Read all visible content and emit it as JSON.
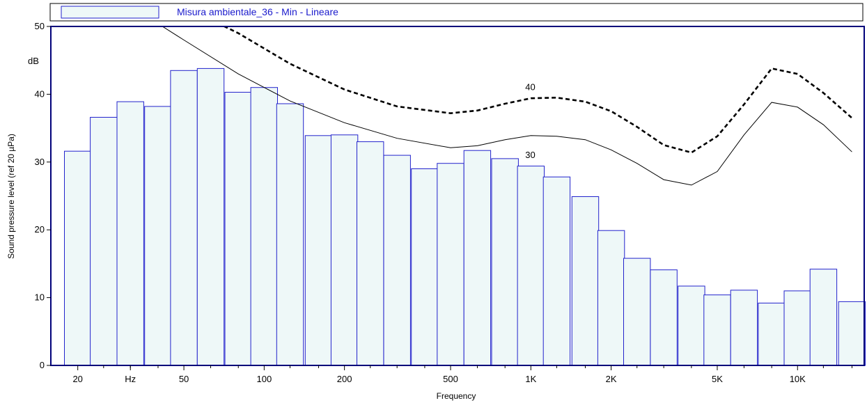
{
  "colors": {
    "bar_fill": "#eef8f8",
    "bar_stroke": "#2222cc",
    "frame": "#00007a",
    "legend_text": "#1a1acc",
    "contour": "#000000"
  },
  "chart_data": {
    "type": "bar",
    "legend": "Misura ambientale_36 - Min - Lineare",
    "xlabel": "Frequency",
    "ylabel": "Sound pressure level (ref 20 µPa)",
    "y_unit_label": "dB",
    "ylim": [
      0,
      50
    ],
    "xscale": "log",
    "xlim_hz": [
      15.85,
      17783
    ],
    "y_ticks": [
      {
        "value": 0,
        "label": "0"
      },
      {
        "value": 10,
        "label": "10"
      },
      {
        "value": 20,
        "label": "20"
      },
      {
        "value": 30,
        "label": "30"
      },
      {
        "value": 40,
        "label": "40"
      },
      {
        "value": 50,
        "label": "50"
      }
    ],
    "x_tick_labels": [
      {
        "hz": 20,
        "label": "20"
      },
      {
        "hz": 31.5,
        "label": "Hz"
      },
      {
        "hz": 50,
        "label": "50"
      },
      {
        "hz": 100,
        "label": "100"
      },
      {
        "hz": 200,
        "label": "200"
      },
      {
        "hz": 500,
        "label": "500"
      },
      {
        "hz": 1000,
        "label": "1K"
      },
      {
        "hz": 2000,
        "label": "2K"
      },
      {
        "hz": 5000,
        "label": "5K"
      },
      {
        "hz": 10000,
        "label": "10K"
      }
    ],
    "minor_ticks_hz": [
      25,
      31.5,
      40,
      63,
      80,
      125,
      160,
      250,
      315,
      400,
      630,
      800,
      1250,
      1600,
      2500,
      3150,
      4000,
      6300,
      8000,
      12500,
      16000
    ],
    "bars": {
      "center_hz": [
        20,
        25,
        31.5,
        40,
        50,
        63,
        80,
        100,
        125,
        160,
        200,
        250,
        315,
        400,
        500,
        630,
        800,
        1000,
        1250,
        1600,
        2000,
        2500,
        3150,
        4000,
        5000,
        6300,
        8000,
        10000,
        12500,
        16000
      ],
      "values": [
        31.6,
        36.6,
        38.9,
        38.2,
        43.5,
        43.8,
        40.3,
        41.0,
        38.6,
        33.9,
        34.0,
        33.0,
        31.0,
        29.0,
        29.8,
        31.7,
        30.5,
        29.4,
        27.8,
        24.9,
        19.9,
        15.8,
        14.1,
        11.7,
        10.4,
        11.1,
        9.2,
        11.0,
        14.2,
        9.4
      ]
    },
    "contours": [
      {
        "dashed": false,
        "points": [
          [
            20,
            58
          ],
          [
            31.5,
            53
          ],
          [
            50,
            48
          ],
          [
            80,
            43
          ],
          [
            125,
            39
          ],
          [
            200,
            35.8
          ],
          [
            315,
            33.5
          ],
          [
            500,
            32.1
          ],
          [
            630,
            32.4
          ],
          [
            800,
            33.3
          ],
          [
            1000,
            33.9
          ],
          [
            1250,
            33.8
          ],
          [
            1600,
            33.3
          ],
          [
            2000,
            31.8
          ],
          [
            2500,
            29.8
          ],
          [
            3150,
            27.4
          ],
          [
            4000,
            26.6
          ],
          [
            5000,
            28.6
          ],
          [
            6300,
            34
          ],
          [
            8000,
            38.8
          ],
          [
            10000,
            38.1
          ],
          [
            12500,
            35.5
          ],
          [
            16000,
            31.5
          ]
        ]
      },
      {
        "dashed": true,
        "points": [
          [
            20,
            62
          ],
          [
            31.5,
            57.5
          ],
          [
            50,
            53
          ],
          [
            63,
            51
          ],
          [
            80,
            49
          ],
          [
            125,
            44.5
          ],
          [
            200,
            40.7
          ],
          [
            315,
            38.2
          ],
          [
            500,
            37.2
          ],
          [
            630,
            37.6
          ],
          [
            800,
            38.6
          ],
          [
            1000,
            39.4
          ],
          [
            1250,
            39.5
          ],
          [
            1600,
            38.9
          ],
          [
            2000,
            37.5
          ],
          [
            2500,
            35.2
          ],
          [
            3150,
            32.5
          ],
          [
            4000,
            31.4
          ],
          [
            5000,
            33.8
          ],
          [
            6300,
            38.5
          ],
          [
            8000,
            43.8
          ],
          [
            10000,
            43.0
          ],
          [
            12500,
            40.2
          ],
          [
            16000,
            36.5
          ]
        ]
      }
    ],
    "contour_labels": [
      {
        "hz": 1000,
        "db": 41,
        "label": "40"
      },
      {
        "hz": 1000,
        "db": 31,
        "label": "30"
      }
    ]
  }
}
